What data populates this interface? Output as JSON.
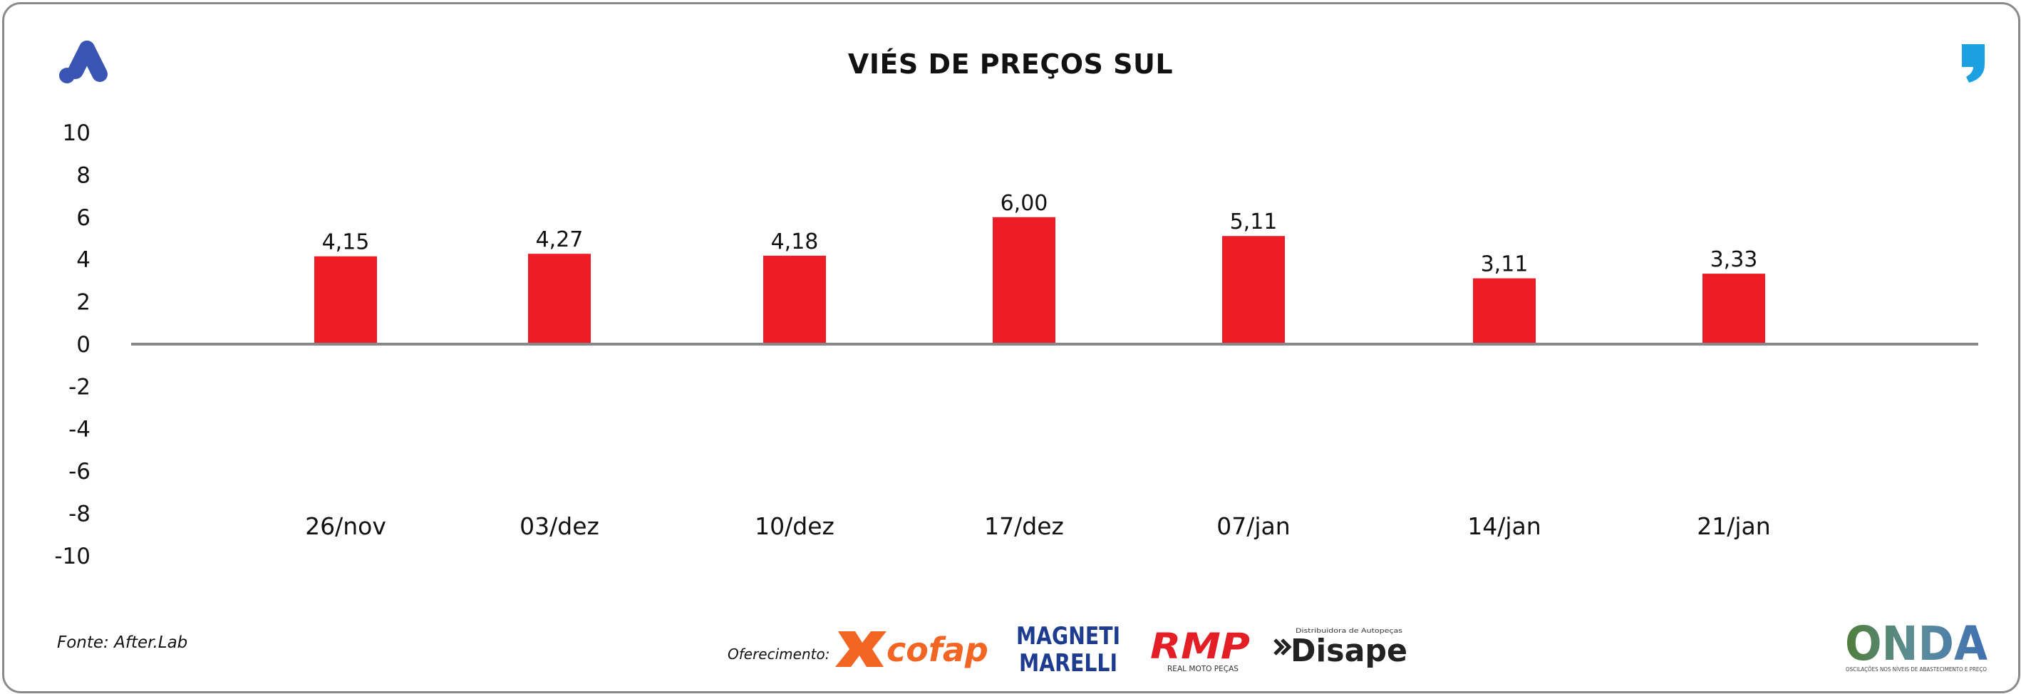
{
  "title": "VIÉS DE PREÇOS SUL",
  "source": "Fonte: After.Lab",
  "sponsors": {
    "label": "Oferecimento:",
    "cofap": "cofap",
    "magneti_line1": "MAGNETI",
    "magneti_line2": "MARELLI",
    "rmp": "RMP",
    "rmp_sub": "REAL MOTO PEÇAS",
    "disape": "Disape",
    "disape_sub": "Distribuidora de Autopeças"
  },
  "onda": {
    "name": "ONDA",
    "tagline": "OSCILAÇÕES NOS NÍVEIS DE ABASTECIMENTO E PREÇO"
  },
  "colors": {
    "bar": "#ee1c25",
    "axis": "#888888",
    "brand_blue": "#3a54b4",
    "quote_blue": "#1ba1e2",
    "cofap_orange": "#f26522",
    "magneti_blue": "#1d3b8f",
    "rmp_red": "#e31e24"
  },
  "icons": {
    "left_brand": "stylized-a-logo-icon",
    "right_brand": "comma-quote-icon"
  },
  "chart_data": {
    "type": "bar",
    "categories": [
      "26/nov",
      "03/dez",
      "10/dez",
      "17/dez",
      "07/jan",
      "14/jan",
      "21/jan"
    ],
    "values": [
      4.15,
      4.27,
      4.18,
      6.0,
      5.11,
      3.11,
      3.33
    ],
    "value_labels": [
      "4,15",
      "4,27",
      "4,18",
      "6,00",
      "5,11",
      "3,11",
      "3,33"
    ],
    "y_ticks": [
      10,
      8,
      6,
      4,
      2,
      0,
      -2,
      -4,
      -6,
      -8,
      -10
    ],
    "ylim": [
      -10,
      10
    ],
    "xlabel": "",
    "ylabel": "",
    "grid": false,
    "legend": "none"
  }
}
